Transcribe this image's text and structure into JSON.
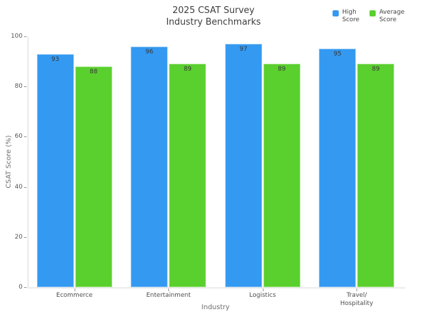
{
  "title": {
    "line1": "2025 CSAT Survey",
    "line2": "Industry Benchmarks"
  },
  "legend": {
    "items": [
      {
        "label": "High\nScore",
        "color": "#3399f1"
      },
      {
        "label": "Average\nScore",
        "color": "#5ad02e"
      }
    ]
  },
  "chart_data": {
    "type": "bar",
    "title": "2025 CSAT Survey\nIndustry Benchmarks",
    "categories": [
      "Ecommerce",
      "Entertainment",
      "Logistics",
      "Travel/\nHospitality"
    ],
    "series": [
      {
        "name": "High Score",
        "color": "#3399f1",
        "values": [
          93,
          96,
          97,
          95
        ]
      },
      {
        "name": "Average Score",
        "color": "#5ad02e",
        "values": [
          88,
          89,
          89,
          89
        ]
      }
    ],
    "xlabel": "Industry",
    "ylabel": "CSAT Score (%)",
    "ylim": [
      0,
      100
    ],
    "yticks": [
      0,
      20,
      40,
      60,
      80,
      100
    ],
    "grid": false,
    "legend_position": "top-right",
    "bar_value_labels": true
  }
}
